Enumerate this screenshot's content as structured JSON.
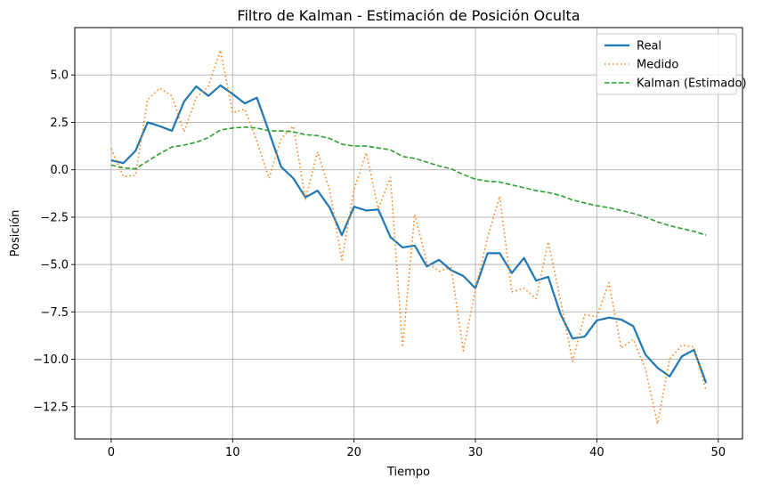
{
  "chart_data": {
    "type": "line",
    "title": "Filtro de Kalman - Estimación de Posición Oculta",
    "xlabel": "Tiempo",
    "ylabel": "Posición",
    "xlim": [
      -3,
      52
    ],
    "ylim": [
      -14.2,
      7.5
    ],
    "xticks": [
      0,
      10,
      20,
      30,
      40,
      50
    ],
    "yticks": [
      5.0,
      2.5,
      0.0,
      -2.5,
      -5.0,
      -7.5,
      -10.0,
      -12.5
    ],
    "xtick_labels": [
      "0",
      "10",
      "20",
      "30",
      "40",
      "50"
    ],
    "ytick_labels": [
      "5.0",
      "2.5",
      "0.0",
      "−2.5",
      "−5.0",
      "−7.5",
      "−10.0",
      "−12.5"
    ],
    "grid": true,
    "legend_position": "top-right",
    "x": [
      0,
      1,
      2,
      3,
      4,
      5,
      6,
      7,
      8,
      9,
      10,
      11,
      12,
      13,
      14,
      15,
      16,
      17,
      18,
      19,
      20,
      21,
      22,
      23,
      24,
      25,
      26,
      27,
      28,
      29,
      30,
      31,
      32,
      33,
      34,
      35,
      36,
      37,
      38,
      39,
      40,
      41,
      42,
      43,
      44,
      45,
      46,
      47,
      48,
      49
    ],
    "series": [
      {
        "name": "Real",
        "color": "#1f77b4",
        "style": "solid",
        "values": [
          0.5,
          0.35,
          1.0,
          2.5,
          2.3,
          2.05,
          3.6,
          4.4,
          3.9,
          4.45,
          4.0,
          3.5,
          3.8,
          2.0,
          0.15,
          -0.45,
          -1.45,
          -1.1,
          -2.0,
          -3.45,
          -1.95,
          -2.15,
          -2.1,
          -3.55,
          -4.1,
          -4.0,
          -5.1,
          -4.75,
          -5.3,
          -5.6,
          -6.25,
          -4.4,
          -4.4,
          -5.45,
          -4.65,
          -5.85,
          -5.65,
          -7.6,
          -8.9,
          -8.8,
          -7.95,
          -7.8,
          -7.9,
          -8.25,
          -9.75,
          -10.45,
          -10.9,
          -9.85,
          -9.5,
          -11.25
        ]
      },
      {
        "name": "Medido",
        "color": "#ff7f0e",
        "style": "dotted",
        "values": [
          1.1,
          -0.35,
          -0.3,
          3.7,
          4.3,
          3.9,
          2.0,
          3.8,
          4.4,
          6.3,
          3.0,
          3.2,
          1.5,
          -0.45,
          1.65,
          2.3,
          -1.55,
          0.95,
          -1.1,
          -4.75,
          -1.05,
          0.9,
          -2.05,
          -0.4,
          -9.35,
          -2.35,
          -4.9,
          -5.35,
          -5.15,
          -9.55,
          -6.3,
          -3.6,
          -1.4,
          -6.45,
          -6.25,
          -6.8,
          -3.8,
          -6.85,
          -10.1,
          -7.65,
          -7.75,
          -5.95,
          -9.4,
          -8.95,
          -10.5,
          -13.4,
          -10.0,
          -9.25,
          -9.35,
          -11.65
        ]
      },
      {
        "name": "Kalman (Estimado)",
        "color": "#2ca02c",
        "style": "dashed",
        "values": [
          0.25,
          0.1,
          0.05,
          0.45,
          0.85,
          1.2,
          1.3,
          1.45,
          1.7,
          2.1,
          2.2,
          2.25,
          2.2,
          2.05,
          2.05,
          2.0,
          1.85,
          1.8,
          1.65,
          1.35,
          1.25,
          1.25,
          1.15,
          1.05,
          0.7,
          0.6,
          0.4,
          0.2,
          0.05,
          -0.25,
          -0.5,
          -0.6,
          -0.65,
          -0.8,
          -0.95,
          -1.1,
          -1.2,
          -1.35,
          -1.6,
          -1.75,
          -1.9,
          -2.0,
          -2.15,
          -2.3,
          -2.5,
          -2.75,
          -2.95,
          -3.1,
          -3.25,
          -3.45
        ]
      }
    ]
  }
}
